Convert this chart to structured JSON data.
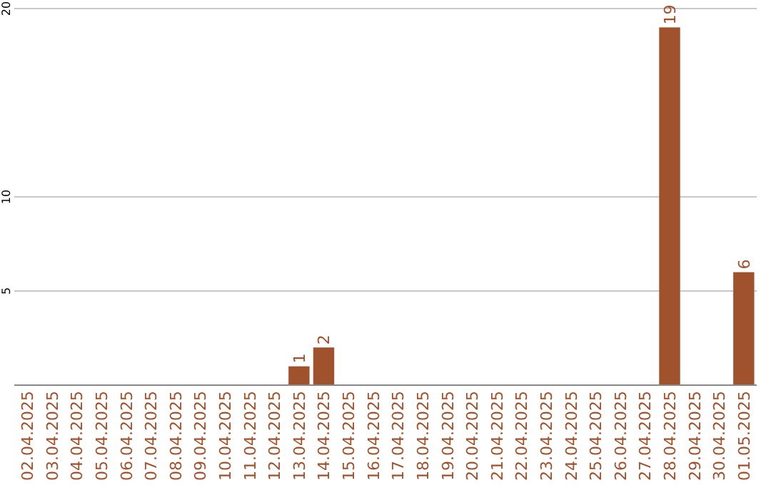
{
  "chart_data": {
    "type": "bar",
    "categories": [
      "02.04.2025",
      "03.04.2025",
      "04.04.2025",
      "05.04.2025",
      "06.04.2025",
      "07.04.2025",
      "08.04.2025",
      "09.04.2025",
      "10.04.2025",
      "11.04.2025",
      "12.04.2025",
      "13.04.2025",
      "14.04.2025",
      "15.04.2025",
      "16.04.2025",
      "17.04.2025",
      "18.04.2025",
      "19.04.2025",
      "20.04.2025",
      "21.04.2025",
      "22.04.2025",
      "23.04.2025",
      "24.04.2025",
      "25.04.2025",
      "26.04.2025",
      "27.04.2025",
      "28.04.2025",
      "29.04.2025",
      "30.04.2025",
      "01.05.2025"
    ],
    "values": [
      0,
      0,
      0,
      0,
      0,
      0,
      0,
      0,
      0,
      0,
      0,
      1,
      2,
      0,
      0,
      0,
      0,
      0,
      0,
      0,
      0,
      0,
      0,
      0,
      0,
      0,
      19,
      0,
      0,
      6
    ],
    "value_labels": [
      null,
      null,
      null,
      null,
      null,
      null,
      null,
      null,
      null,
      null,
      null,
      "1",
      "2",
      null,
      null,
      null,
      null,
      null,
      null,
      null,
      null,
      null,
      null,
      null,
      null,
      null,
      "19",
      null,
      null,
      "6"
    ],
    "color": "#a0522d",
    "ylim": [
      0,
      20
    ],
    "yticks": [
      5,
      10,
      20
    ],
    "grid": "y"
  }
}
